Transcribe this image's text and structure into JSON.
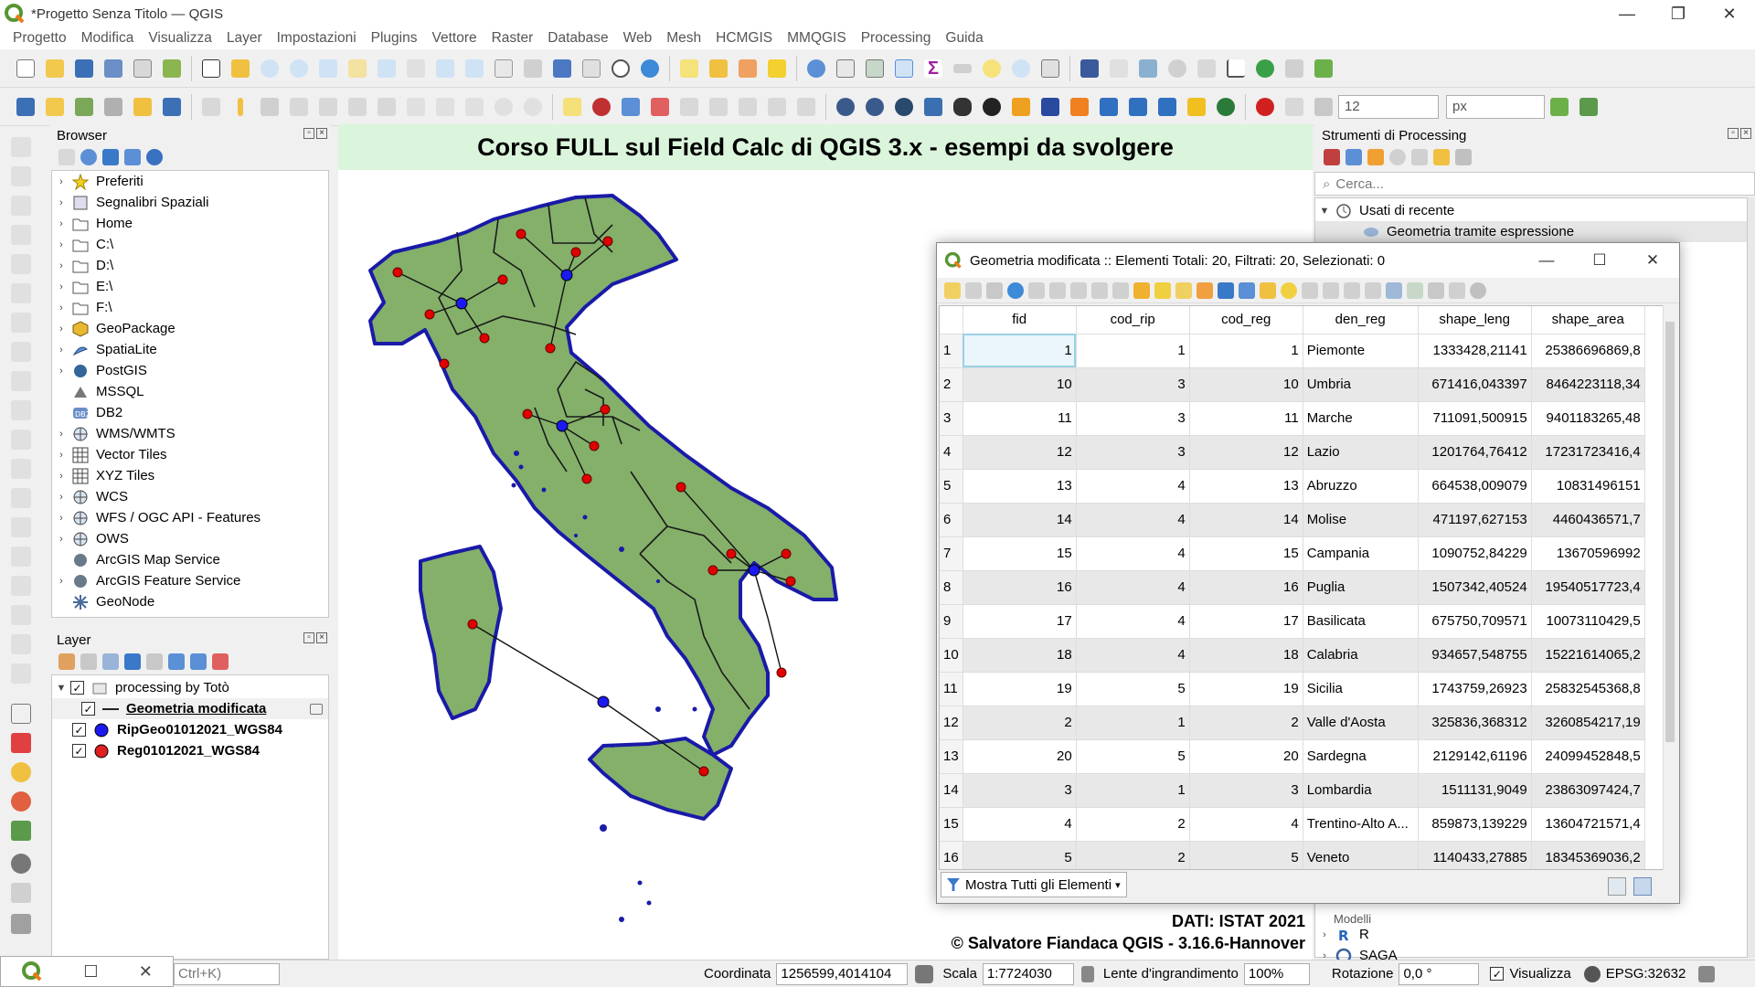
{
  "window": {
    "title": "*Progetto Senza Titolo — QGIS"
  },
  "menu": [
    "Progetto",
    "Modifica",
    "Visualizza",
    "Layer",
    "Impostazioni",
    "Plugins",
    "Vettore",
    "Raster",
    "Database",
    "Web",
    "Mesh",
    "HCMGIS",
    "MMQGIS",
    "Processing",
    "Guida"
  ],
  "toolbar2": {
    "size_value": "12",
    "unit_value": "px"
  },
  "browser": {
    "title": "Browser",
    "items": [
      {
        "label": "Preferiti",
        "expand": true,
        "icon": "star-icon"
      },
      {
        "label": "Segnalibri Spaziali",
        "expand": true,
        "icon": "bookmark-icon"
      },
      {
        "label": "Home",
        "expand": true,
        "icon": "folder-icon"
      },
      {
        "label": "C:\\",
        "expand": true,
        "icon": "folder-icon"
      },
      {
        "label": "D:\\",
        "expand": true,
        "icon": "folder-icon"
      },
      {
        "label": "E:\\",
        "expand": true,
        "icon": "folder-icon"
      },
      {
        "label": "F:\\",
        "expand": true,
        "icon": "folder-icon"
      },
      {
        "label": "GeoPackage",
        "expand": true,
        "icon": "geopackage-icon"
      },
      {
        "label": "SpatiaLite",
        "expand": true,
        "icon": "spatialite-icon"
      },
      {
        "label": "PostGIS",
        "expand": true,
        "icon": "postgis-icon"
      },
      {
        "label": "MSSQL",
        "expand": false,
        "icon": "mssql-icon"
      },
      {
        "label": "DB2",
        "expand": false,
        "icon": "db2-icon"
      },
      {
        "label": "WMS/WMTS",
        "expand": true,
        "icon": "globe-icon"
      },
      {
        "label": "Vector Tiles",
        "expand": true,
        "icon": "grid-icon"
      },
      {
        "label": "XYZ Tiles",
        "expand": true,
        "icon": "grid-icon"
      },
      {
        "label": "WCS",
        "expand": true,
        "icon": "globe-icon"
      },
      {
        "label": "WFS / OGC API - Features",
        "expand": true,
        "icon": "globe-icon"
      },
      {
        "label": "OWS",
        "expand": true,
        "icon": "globe-icon"
      },
      {
        "label": "ArcGIS Map Service",
        "expand": false,
        "icon": "arcgis-icon"
      },
      {
        "label": "ArcGIS Feature Service",
        "expand": true,
        "icon": "arcgis-icon"
      },
      {
        "label": "GeoNode",
        "expand": false,
        "icon": "geonode-icon"
      }
    ]
  },
  "layers": {
    "title": "Layer",
    "group": "processing by Totò",
    "items": [
      {
        "label": "Geometria modificata",
        "style": "line"
      },
      {
        "label": "RipGeo01012021_WGS84",
        "style": "blue-point"
      },
      {
        "label": "Reg01012021_WGS84",
        "style": "red-point"
      }
    ]
  },
  "map": {
    "title": "Corso FULL sul Field Calc di QGIS 3.x - esempi da svolgere",
    "credit1": "DATI: ISTAT 2021",
    "credit2": "© Salvatore Fiandaca QGIS - 3.16.6-Hannover",
    "fill": "#84b06a",
    "border": "#1a1aa8"
  },
  "processing": {
    "title": "Strumenti di Processing",
    "search_placeholder": "Cerca...",
    "recent": "Usati di recente",
    "recent_item": "Geometria tramite espressione",
    "bottom_items": [
      "Modelli",
      "R",
      "SAGA"
    ]
  },
  "attr": {
    "title": "Geometria modificata :: Elementi Totali: 20, Filtrati: 20, Selezionati: 0",
    "columns": [
      "fid",
      "cod_rip",
      "cod_reg",
      "den_reg",
      "shape_leng",
      "shape_area"
    ],
    "rows": [
      [
        "1",
        "1",
        "1",
        "1",
        "Piemonte",
        "1333428,21141",
        "25386696869,8"
      ],
      [
        "2",
        "10",
        "3",
        "10",
        "Umbria",
        "671416,043397",
        "8464223118,34"
      ],
      [
        "3",
        "11",
        "3",
        "11",
        "Marche",
        "711091,500915",
        "9401183265,48"
      ],
      [
        "4",
        "12",
        "3",
        "12",
        "Lazio",
        "1201764,76412",
        "17231723416,4"
      ],
      [
        "5",
        "13",
        "4",
        "13",
        "Abruzzo",
        "664538,009079",
        "10831496151"
      ],
      [
        "6",
        "14",
        "4",
        "14",
        "Molise",
        "471197,627153",
        "4460436571,7"
      ],
      [
        "7",
        "15",
        "4",
        "15",
        "Campania",
        "1090752,84229",
        "13670596992"
      ],
      [
        "8",
        "16",
        "4",
        "16",
        "Puglia",
        "1507342,40524",
        "19540517723,4"
      ],
      [
        "9",
        "17",
        "4",
        "17",
        "Basilicata",
        "675750,709571",
        "10073110429,5"
      ],
      [
        "10",
        "18",
        "4",
        "18",
        "Calabria",
        "934657,548755",
        "15221614065,2"
      ],
      [
        "11",
        "19",
        "5",
        "19",
        "Sicilia",
        "1743759,26923",
        "25832545368,8"
      ],
      [
        "12",
        "2",
        "1",
        "2",
        "Valle d'Aosta",
        "325836,368312",
        "3260854217,19"
      ],
      [
        "13",
        "20",
        "5",
        "20",
        "Sardegna",
        "2129142,61196",
        "24099452848,5"
      ],
      [
        "14",
        "3",
        "1",
        "3",
        "Lombardia",
        "1511131,9049",
        "23863097424,7"
      ],
      [
        "15",
        "4",
        "2",
        "4",
        "Trentino-Alto A...",
        "859873,139229",
        "13604721571,4"
      ],
      [
        "16",
        "5",
        "2",
        "5",
        "Veneto",
        "1140433,27885",
        "18345369036,2"
      ]
    ],
    "show_all": "Mostra Tutti gli Elementi"
  },
  "status": {
    "search_hint": "Ctrl+K)",
    "coord_label": "Coordinata",
    "coord_value": "1256599,4014104",
    "scale_label": "Scala",
    "scale_value": "1:7724030",
    "magnifier_label": "Lente d'ingrandimento",
    "magnifier_value": "100%",
    "rotation_label": "Rotazione",
    "rotation_value": "0,0 °",
    "render_label": "Visualizza",
    "crs": "EPSG:32632"
  }
}
